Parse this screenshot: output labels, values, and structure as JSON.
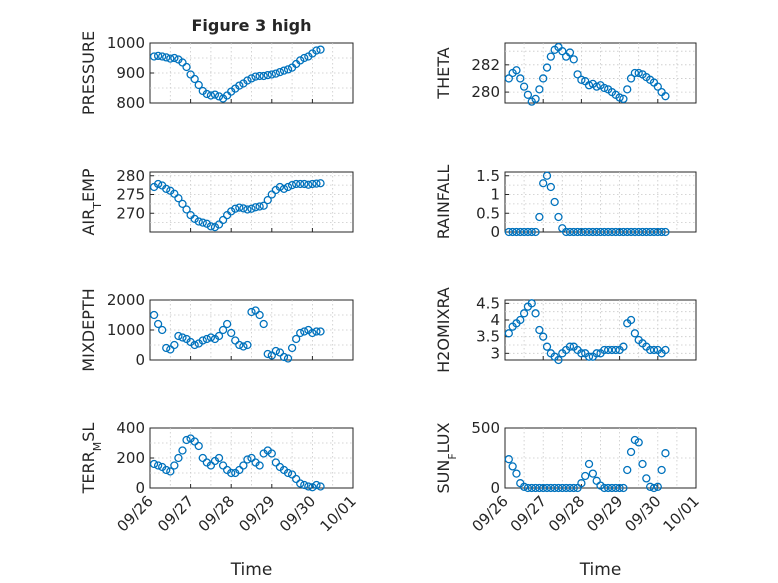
{
  "figure": {
    "title": "Figure 3 high",
    "marker_color": "#0072BD"
  },
  "chart_data": [
    {
      "type": "scatter",
      "ylabel": "PRESSURE",
      "title": "Figure 3 high",
      "ylim": [
        800,
        1000
      ],
      "yticks": [
        800,
        900,
        1000
      ],
      "yticklabels": [
        "800",
        "900",
        "1000"
      ],
      "xlim": [
        0,
        5
      ],
      "xticks": [
        0,
        1,
        2,
        3,
        4,
        5
      ],
      "xticklabels": [
        "09/26",
        "09/27",
        "09/28",
        "09/29",
        "09/30",
        "10/01"
      ],
      "xlabel": "",
      "x": [
        0.1,
        0.2,
        0.3,
        0.4,
        0.5,
        0.6,
        0.7,
        0.8,
        0.9,
        1.0,
        1.1,
        1.2,
        1.3,
        1.4,
        1.5,
        1.6,
        1.7,
        1.8,
        1.9,
        2.0,
        2.1,
        2.2,
        2.3,
        2.4,
        2.5,
        2.6,
        2.7,
        2.8,
        2.9,
        3.0,
        3.1,
        3.2,
        3.3,
        3.4,
        3.5,
        3.6,
        3.7,
        3.8,
        3.9,
        4.0,
        4.1,
        4.2
      ],
      "y": [
        955,
        957,
        955,
        952,
        948,
        950,
        945,
        935,
        920,
        895,
        880,
        860,
        840,
        830,
        825,
        828,
        822,
        815,
        825,
        838,
        848,
        858,
        865,
        875,
        882,
        888,
        890,
        890,
        893,
        895,
        898,
        903,
        908,
        912,
        918,
        930,
        942,
        950,
        955,
        965,
        975,
        978
      ]
    },
    {
      "type": "scatter",
      "ylabel": "THETA",
      "title": "",
      "ylim": [
        279.2,
        283.6
      ],
      "yticks": [
        280,
        282
      ],
      "yticklabels": [
        "280",
        "282"
      ],
      "xlim": [
        0,
        5
      ],
      "xticks": [
        0,
        1,
        2,
        3,
        4,
        5
      ],
      "xticklabels": [
        "09/26",
        "09/27",
        "09/28",
        "09/29",
        "09/30",
        "10/01"
      ],
      "xlabel": "",
      "x": [
        0.1,
        0.2,
        0.3,
        0.4,
        0.5,
        0.6,
        0.7,
        0.8,
        0.9,
        1.0,
        1.1,
        1.2,
        1.3,
        1.4,
        1.5,
        1.6,
        1.7,
        1.8,
        1.9,
        2.0,
        2.1,
        2.2,
        2.3,
        2.4,
        2.5,
        2.6,
        2.7,
        2.8,
        2.9,
        3.0,
        3.1,
        3.2,
        3.3,
        3.4,
        3.5,
        3.6,
        3.7,
        3.8,
        3.9,
        4.0,
        4.1,
        4.2
      ],
      "y": [
        281.0,
        281.4,
        281.6,
        281.0,
        280.4,
        279.8,
        279.3,
        279.5,
        280.2,
        281.0,
        281.8,
        282.6,
        283.1,
        283.3,
        283.0,
        282.6,
        282.9,
        282.4,
        281.3,
        280.9,
        280.8,
        280.5,
        280.6,
        280.4,
        280.5,
        280.3,
        280.2,
        280.0,
        279.8,
        279.6,
        279.5,
        280.2,
        281.0,
        281.4,
        281.4,
        281.3,
        281.1,
        280.9,
        280.7,
        280.4,
        280.0,
        279.7
      ]
    },
    {
      "type": "scatter",
      "ylabel": "AIR_TEMP",
      "title": "",
      "ylim": [
        265,
        281
      ],
      "yticks": [
        270,
        275,
        280
      ],
      "yticklabels": [
        "270",
        "275",
        "280"
      ],
      "xlim": [
        0,
        5
      ],
      "xticks": [
        0,
        1,
        2,
        3,
        4,
        5
      ],
      "xticklabels": [
        "09/26",
        "09/27",
        "09/28",
        "09/29",
        "09/30",
        "10/01"
      ],
      "xlabel": "",
      "x": [
        0.1,
        0.2,
        0.3,
        0.4,
        0.5,
        0.6,
        0.7,
        0.8,
        0.9,
        1.0,
        1.1,
        1.2,
        1.3,
        1.4,
        1.5,
        1.6,
        1.7,
        1.8,
        1.9,
        2.0,
        2.1,
        2.2,
        2.3,
        2.4,
        2.5,
        2.6,
        2.7,
        2.8,
        2.9,
        3.0,
        3.1,
        3.2,
        3.3,
        3.4,
        3.5,
        3.6,
        3.7,
        3.8,
        3.9,
        4.0,
        4.1,
        4.2
      ],
      "y": [
        277.0,
        277.8,
        277.4,
        276.5,
        276.0,
        275.2,
        274.0,
        272.5,
        271.0,
        269.5,
        268.5,
        267.8,
        267.5,
        267.2,
        266.5,
        266.3,
        267.0,
        268.2,
        269.5,
        270.5,
        271.2,
        271.5,
        271.3,
        271.0,
        271.2,
        271.6,
        271.8,
        272.0,
        273.5,
        275.0,
        276.2,
        277.0,
        276.5,
        277.0,
        277.5,
        277.8,
        277.8,
        277.8,
        277.6,
        277.8,
        277.9,
        278.0
      ]
    },
    {
      "type": "scatter",
      "ylabel": "RAINFALL",
      "title": "",
      "ylim": [
        0,
        1.6
      ],
      "yticks": [
        0,
        0.5,
        1,
        1.5
      ],
      "yticklabels": [
        "0",
        "0.5",
        "1",
        "1.5"
      ],
      "xlim": [
        0,
        5
      ],
      "xticks": [
        0,
        1,
        2,
        3,
        4,
        5
      ],
      "xticklabels": [
        "09/26",
        "09/27",
        "09/28",
        "09/29",
        "09/30",
        "10/01"
      ],
      "xlabel": "",
      "x": [
        0.1,
        0.2,
        0.3,
        0.4,
        0.5,
        0.6,
        0.7,
        0.8,
        0.9,
        1.0,
        1.1,
        1.2,
        1.3,
        1.4,
        1.5,
        1.6,
        1.7,
        1.8,
        1.9,
        2.0,
        2.1,
        2.2,
        2.3,
        2.4,
        2.5,
        2.6,
        2.7,
        2.8,
        2.9,
        3.0,
        3.1,
        3.2,
        3.3,
        3.4,
        3.5,
        3.6,
        3.7,
        3.8,
        3.9,
        4.0,
        4.1,
        4.2
      ],
      "y": [
        0,
        0,
        0,
        0,
        0,
        0,
        0,
        0,
        0.4,
        1.3,
        1.5,
        1.2,
        0.8,
        0.4,
        0.1,
        0,
        0,
        0,
        0,
        0,
        0,
        0,
        0,
        0,
        0,
        0,
        0,
        0,
        0,
        0,
        0,
        0,
        0,
        0,
        0,
        0,
        0,
        0,
        0,
        0,
        0,
        0
      ]
    },
    {
      "type": "scatter",
      "ylabel": "MIXDEPTH",
      "title": "",
      "ylim": [
        0,
        2000
      ],
      "yticks": [
        0,
        1000,
        2000
      ],
      "yticklabels": [
        "0",
        "1000",
        "2000"
      ],
      "xlim": [
        0,
        5
      ],
      "xticks": [
        0,
        1,
        2,
        3,
        4,
        5
      ],
      "xticklabels": [
        "09/26",
        "09/27",
        "09/28",
        "09/29",
        "09/30",
        "10/01"
      ],
      "xlabel": "",
      "x": [
        0.1,
        0.2,
        0.3,
        0.4,
        0.5,
        0.6,
        0.7,
        0.8,
        0.9,
        1.0,
        1.1,
        1.2,
        1.3,
        1.4,
        1.5,
        1.6,
        1.7,
        1.8,
        1.9,
        2.0,
        2.1,
        2.2,
        2.3,
        2.4,
        2.5,
        2.6,
        2.7,
        2.8,
        2.9,
        3.0,
        3.1,
        3.2,
        3.3,
        3.4,
        3.5,
        3.6,
        3.7,
        3.8,
        3.9,
        4.0,
        4.1,
        4.2
      ],
      "y": [
        1500,
        1200,
        1000,
        400,
        350,
        500,
        800,
        750,
        700,
        600,
        500,
        550,
        650,
        700,
        750,
        700,
        800,
        1000,
        1200,
        900,
        650,
        500,
        450,
        500,
        1600,
        1650,
        1500,
        1200,
        200,
        150,
        300,
        250,
        100,
        50,
        400,
        700,
        900,
        950,
        1000,
        900,
        950,
        950
      ]
    },
    {
      "type": "scatter",
      "ylabel": "H2OMIXRA",
      "title": "",
      "ylim": [
        2.8,
        4.6
      ],
      "yticks": [
        3,
        3.5,
        4,
        4.5
      ],
      "yticklabels": [
        "3",
        "3.5",
        "4",
        "4.5"
      ],
      "xlim": [
        0,
        5
      ],
      "xticks": [
        0,
        1,
        2,
        3,
        4,
        5
      ],
      "xticklabels": [
        "09/26",
        "09/27",
        "09/28",
        "09/29",
        "09/30",
        "10/01"
      ],
      "xlabel": "",
      "x": [
        0.1,
        0.2,
        0.3,
        0.4,
        0.5,
        0.6,
        0.7,
        0.8,
        0.9,
        1.0,
        1.1,
        1.2,
        1.3,
        1.4,
        1.5,
        1.6,
        1.7,
        1.8,
        1.9,
        2.0,
        2.1,
        2.2,
        2.3,
        2.4,
        2.5,
        2.6,
        2.7,
        2.8,
        2.9,
        3.0,
        3.1,
        3.2,
        3.3,
        3.4,
        3.5,
        3.6,
        3.7,
        3.8,
        3.9,
        4.0,
        4.1,
        4.2
      ],
      "y": [
        3.6,
        3.8,
        3.9,
        4.0,
        4.2,
        4.4,
        4.5,
        4.2,
        3.7,
        3.5,
        3.2,
        3.0,
        2.9,
        2.8,
        3.0,
        3.1,
        3.2,
        3.2,
        3.1,
        3.0,
        3.0,
        2.9,
        2.9,
        3.0,
        3.0,
        3.1,
        3.1,
        3.1,
        3.1,
        3.1,
        3.2,
        3.9,
        4.0,
        3.6,
        3.4,
        3.3,
        3.2,
        3.1,
        3.1,
        3.1,
        3.0,
        3.1
      ]
    },
    {
      "type": "scatter",
      "ylabel": "TERR_MSL",
      "title": "",
      "ylim": [
        0,
        400
      ],
      "yticks": [
        0,
        200,
        400
      ],
      "yticklabels": [
        "0",
        "200",
        "400"
      ],
      "xlim": [
        0,
        5
      ],
      "xticks": [
        0,
        1,
        2,
        3,
        4,
        5
      ],
      "xticklabels": [
        "09/26",
        "09/27",
        "09/28",
        "09/29",
        "09/30",
        "10/01"
      ],
      "xlabel": "Time",
      "x": [
        0.1,
        0.2,
        0.3,
        0.4,
        0.5,
        0.6,
        0.7,
        0.8,
        0.9,
        1.0,
        1.1,
        1.2,
        1.3,
        1.4,
        1.5,
        1.6,
        1.7,
        1.8,
        1.9,
        2.0,
        2.1,
        2.2,
        2.3,
        2.4,
        2.5,
        2.6,
        2.7,
        2.8,
        2.9,
        3.0,
        3.1,
        3.2,
        3.3,
        3.4,
        3.5,
        3.6,
        3.7,
        3.8,
        3.9,
        4.0,
        4.1,
        4.2
      ],
      "y": [
        160,
        150,
        140,
        120,
        110,
        150,
        200,
        250,
        320,
        330,
        310,
        280,
        200,
        170,
        150,
        180,
        200,
        150,
        120,
        100,
        100,
        120,
        150,
        190,
        200,
        170,
        150,
        230,
        250,
        230,
        170,
        140,
        120,
        100,
        90,
        60,
        30,
        20,
        10,
        5,
        20,
        10
      ]
    },
    {
      "type": "scatter",
      "ylabel": "SUN_FLUX",
      "title": "",
      "ylim": [
        0,
        500
      ],
      "yticks": [
        0,
        500
      ],
      "yticklabels": [
        "0",
        "500"
      ],
      "xlim": [
        0,
        5
      ],
      "xticks": [
        0,
        1,
        2,
        3,
        4,
        5
      ],
      "xticklabels": [
        "09/26",
        "09/27",
        "09/28",
        "09/29",
        "09/30",
        "10/01"
      ],
      "xlabel": "Time",
      "x": [
        0.1,
        0.2,
        0.3,
        0.4,
        0.5,
        0.6,
        0.7,
        0.8,
        0.9,
        1.0,
        1.1,
        1.2,
        1.3,
        1.4,
        1.5,
        1.6,
        1.7,
        1.8,
        1.9,
        2.0,
        2.1,
        2.2,
        2.3,
        2.4,
        2.5,
        2.6,
        2.7,
        2.8,
        2.9,
        3.0,
        3.1,
        3.2,
        3.3,
        3.4,
        3.5,
        3.6,
        3.7,
        3.8,
        3.9,
        4.0,
        4.1,
        4.2
      ],
      "y": [
        240,
        180,
        120,
        40,
        10,
        0,
        0,
        0,
        0,
        0,
        0,
        0,
        0,
        0,
        0,
        0,
        0,
        0,
        0,
        40,
        100,
        200,
        120,
        60,
        20,
        0,
        0,
        0,
        0,
        0,
        0,
        150,
        300,
        400,
        380,
        200,
        80,
        10,
        0,
        10,
        150,
        290
      ]
    }
  ]
}
